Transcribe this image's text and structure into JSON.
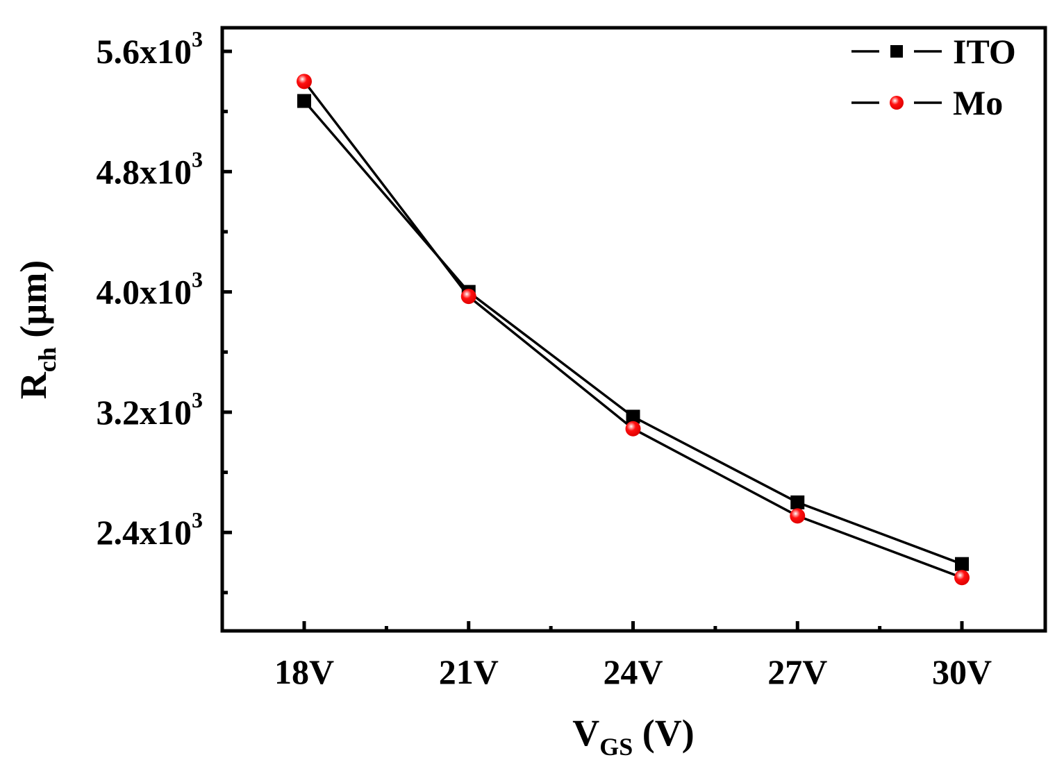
{
  "chart_data": {
    "type": "line",
    "title": "",
    "xlabel": "V_GS (V)",
    "xlabel_main": "V",
    "xlabel_sub": "GS",
    "xlabel_unit": " (V)",
    "ylabel": "R_ch (µm)",
    "ylabel_main": "R",
    "ylabel_sub": "ch",
    "ylabel_unit": " (µm)",
    "categories": [
      "18V",
      "21V",
      "24V",
      "27V",
      "30V"
    ],
    "ylim": [
      1850,
      5750
    ],
    "yticks": [
      {
        "value": 2400,
        "mantissa": "2.4x10",
        "exp": "3"
      },
      {
        "value": 3200,
        "mantissa": "3.2x10",
        "exp": "3"
      },
      {
        "value": 4000,
        "mantissa": "4.0x10",
        "exp": "3"
      },
      {
        "value": 4800,
        "mantissa": "4.8x10",
        "exp": "3"
      },
      {
        "value": 5600,
        "mantissa": "5.6x10",
        "exp": "3"
      }
    ],
    "grid": false,
    "legend_position": "upper right",
    "series": [
      {
        "name": "ITO",
        "marker": "square",
        "color": "#000000",
        "values": [
          5270,
          4000,
          3170,
          2600,
          2190
        ]
      },
      {
        "name": "Mo",
        "marker": "sphere",
        "color": "#ff0000",
        "values": [
          5400,
          3970,
          3090,
          2510,
          2100
        ]
      }
    ]
  }
}
